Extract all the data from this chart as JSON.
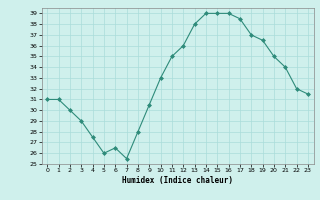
{
  "x": [
    0,
    1,
    2,
    3,
    4,
    5,
    6,
    7,
    8,
    9,
    10,
    11,
    12,
    13,
    14,
    15,
    16,
    17,
    18,
    19,
    20,
    21,
    22,
    23
  ],
  "y": [
    31,
    31,
    30,
    29,
    27.5,
    26,
    26.5,
    25.5,
    28,
    30.5,
    33,
    35,
    36,
    38,
    39,
    39,
    39,
    38.5,
    37,
    36.5,
    35,
    34,
    32,
    31.5
  ],
  "xlabel": "Humidex (Indice chaleur)",
  "line_color": "#2e8b7a",
  "marker": "D",
  "marker_size": 2,
  "bg_color": "#cff0ec",
  "grid_color": "#aaddda",
  "ylim": [
    25,
    39.5
  ],
  "xlim": [
    -0.5,
    23.5
  ],
  "yticks": [
    25,
    26,
    27,
    28,
    29,
    30,
    31,
    32,
    33,
    34,
    35,
    36,
    37,
    38,
    39
  ],
  "xticks": [
    0,
    1,
    2,
    3,
    4,
    5,
    6,
    7,
    8,
    9,
    10,
    11,
    12,
    13,
    14,
    15,
    16,
    17,
    18,
    19,
    20,
    21,
    22,
    23
  ]
}
